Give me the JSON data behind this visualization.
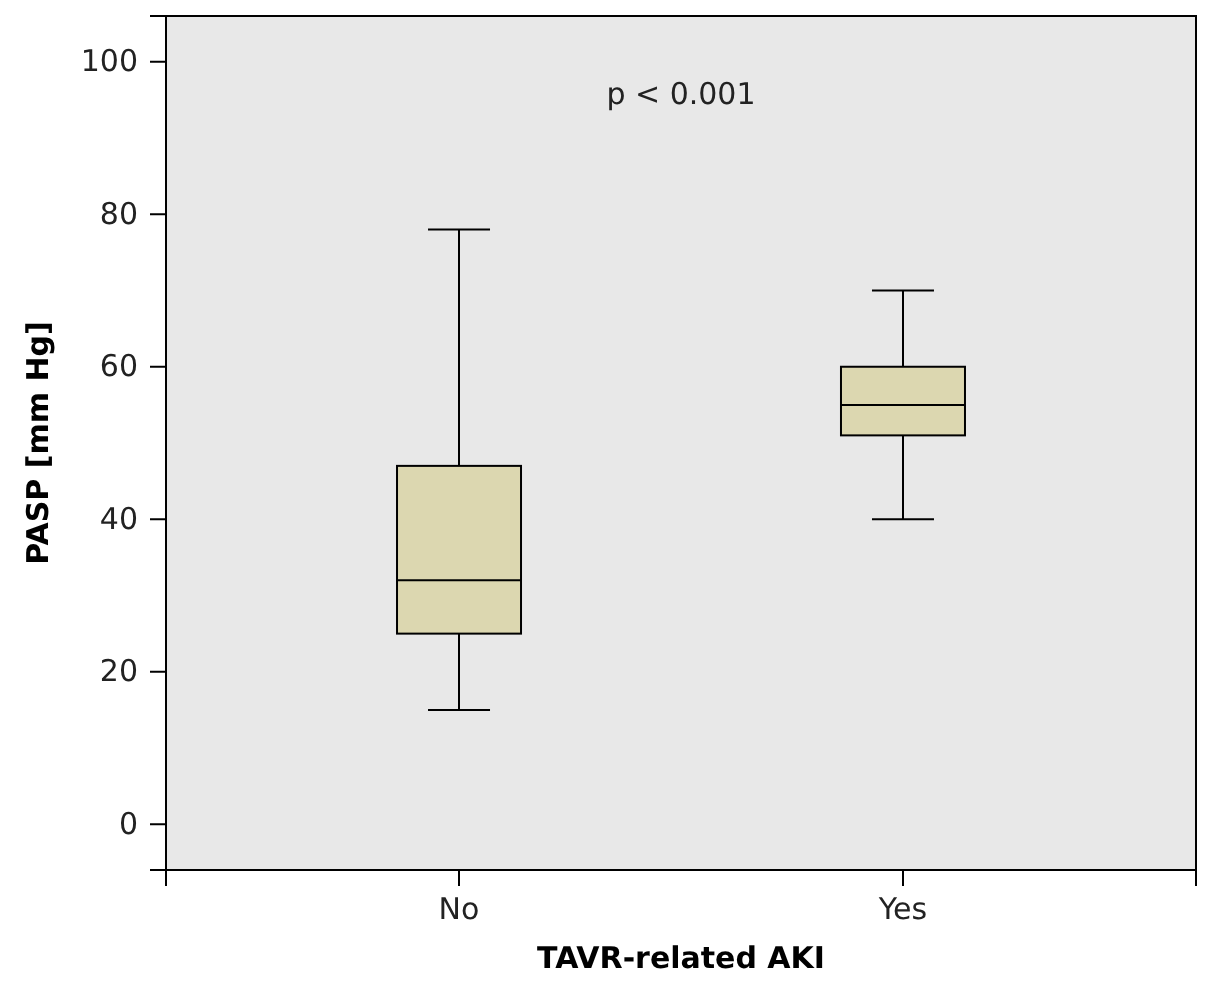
{
  "chart_data": {
    "type": "box",
    "xlabel": "TAVR-related AKI",
    "ylabel": "PASP [mm Hg]",
    "categories": [
      "No",
      "Yes"
    ],
    "color": "#dcd7b0",
    "ylim": [
      -6,
      106
    ],
    "yticks": [
      0,
      20,
      40,
      60,
      80,
      100
    ],
    "annotations": [
      "p < 0.001"
    ],
    "boxes": [
      {
        "low": 15,
        "q1": 25,
        "median": 32,
        "q3": 47,
        "high": 78
      },
      {
        "low": 40,
        "q1": 51,
        "median": 55,
        "q3": 60,
        "high": 70
      }
    ]
  }
}
